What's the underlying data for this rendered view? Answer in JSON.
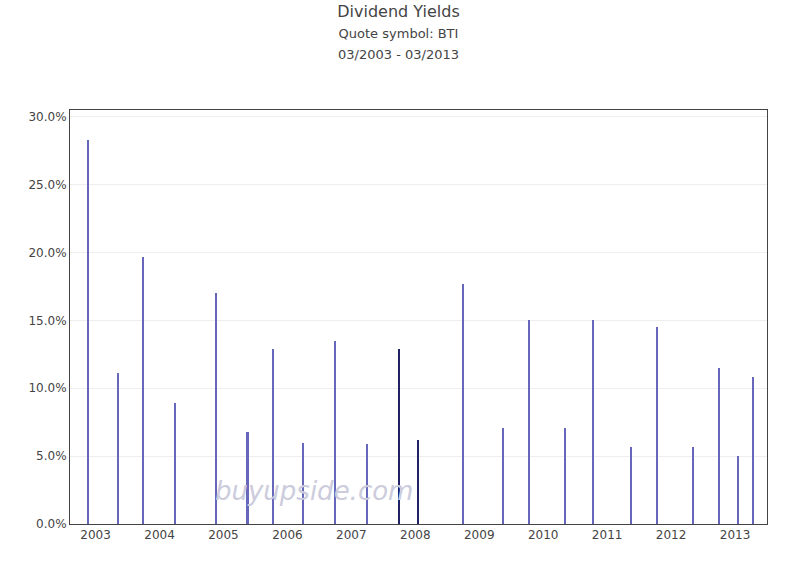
{
  "chart_data": {
    "type": "stem",
    "title": "Dividend Yields",
    "subtitle": [
      "Quote symbol: BTI",
      "03/2003 - 03/2013"
    ],
    "annotations": [
      {
        "text": "buyupside.com",
        "color": "#ccccdd"
      }
    ],
    "x": [
      2002.88,
      2003.35,
      2003.75,
      2004.25,
      2004.88,
      2005.38,
      2005.78,
      2006.25,
      2006.75,
      2007.25,
      2007.75,
      2008.05,
      2008.75,
      2009.38,
      2009.78,
      2010.35,
      2010.78,
      2011.38,
      2011.78,
      2012.35,
      2012.75,
      2013.05,
      2013.28
    ],
    "values": [
      0.283,
      0.111,
      0.197,
      0.089,
      0.17,
      0.068,
      0.129,
      0.06,
      0.135,
      0.059,
      0.129,
      0.062,
      0.177,
      0.071,
      0.15,
      0.071,
      0.15,
      0.057,
      0.145,
      0.057,
      0.115,
      0.05,
      0.108
    ],
    "colors": [
      "#6666bb",
      "#6666bb",
      "#6666bb",
      "#6666bb",
      "#6666bb",
      "#6666bb",
      "#6666bb",
      "#6666bb",
      "#6666bb",
      "#6666bb",
      "#222266",
      "#222266",
      "#6666bb",
      "#6666bb",
      "#6666bb",
      "#6666bb",
      "#6666bb",
      "#6666bb",
      "#6666bb",
      "#6666bb",
      "#6666bb",
      "#6666bb",
      "#6666bb"
    ],
    "xlim": [
      2002.6,
      2013.5
    ],
    "xticks": [
      2003,
      2004,
      2005,
      2006,
      2007,
      2008,
      2009,
      2010,
      2011,
      2012,
      2013
    ],
    "ylim": [
      0,
      0.305
    ],
    "yticks": [
      {
        "value": 0.0,
        "label": "0.0%"
      },
      {
        "value": 0.05,
        "label": "5.0%"
      },
      {
        "value": 0.1,
        "label": "10.0%"
      },
      {
        "value": 0.15,
        "label": "15.0%"
      },
      {
        "value": 0.2,
        "label": "20.0%"
      },
      {
        "value": 0.25,
        "label": "25.0%"
      },
      {
        "value": 0.3,
        "label": "30.0%"
      }
    ],
    "grid": "y"
  }
}
